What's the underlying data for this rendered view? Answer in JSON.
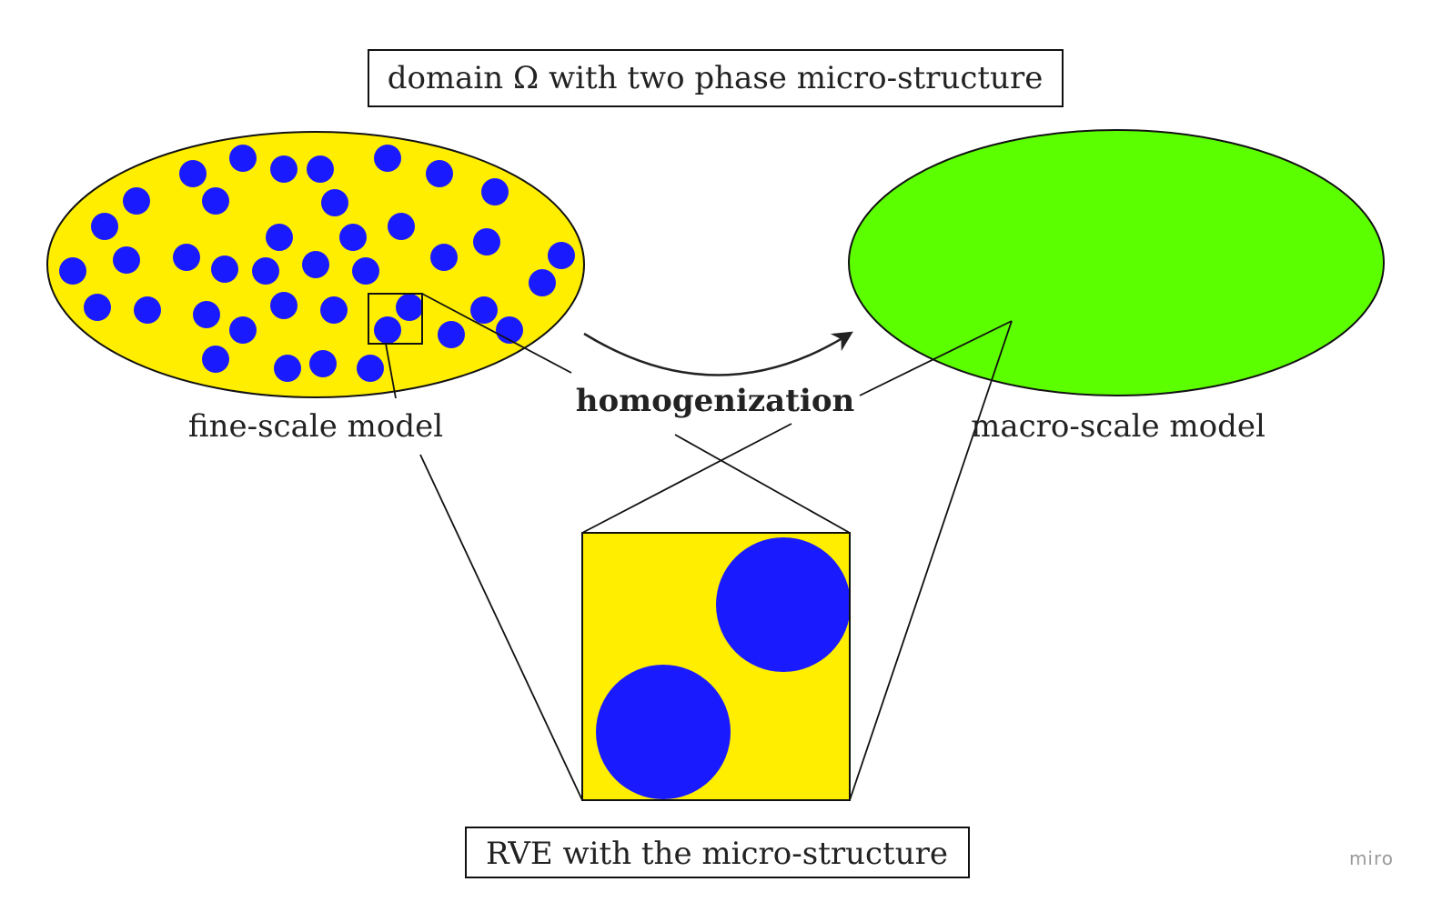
{
  "title": "domain Ω with two phase micro-structure",
  "fine_label": "fine-scale model",
  "process_label": "homogenization",
  "macro_label": "macro-scale model",
  "rve_label": "RVE with the micro-structure",
  "watermark": "miro",
  "colors": {
    "matrix": "#ffee00",
    "inclusion": "#1a1aff",
    "homogenized": "#5cff00",
    "stroke": "#111111"
  }
}
